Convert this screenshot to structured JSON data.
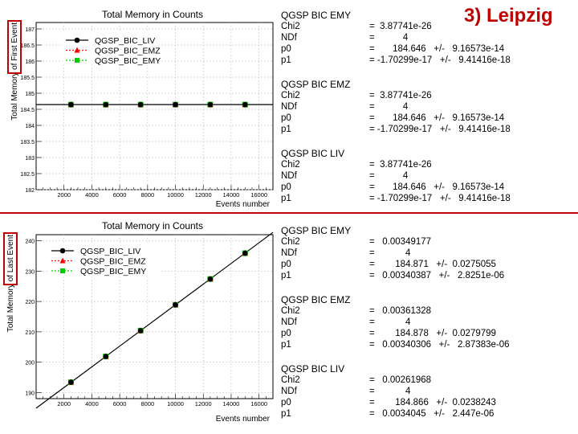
{
  "slide_title": "3) Leipzig",
  "chart_data": [
    {
      "type": "line",
      "title": "Total Memory in Counts",
      "xlabel": "Events number",
      "ylabel": "Total Memory of First Event",
      "xlim": [
        0,
        17000
      ],
      "ylim": [
        182,
        187.2
      ],
      "xticks": [
        2000,
        4000,
        6000,
        8000,
        10000,
        12000,
        14000,
        16000
      ],
      "yticks": [
        182,
        182.5,
        183,
        183.5,
        184,
        184.5,
        185,
        185.5,
        186,
        186.5,
        187
      ],
      "ytick_labels": [
        "182",
        "182.5",
        "183",
        "183.5",
        "184",
        "184.5",
        "185",
        "185.5",
        "186",
        "186.5",
        "187"
      ],
      "fit_line": {
        "slope": 0,
        "intercept": 184.646
      },
      "legend": [
        "QGSP_BIC_LIV",
        "QGSP_BIC_EMZ",
        "QGSP_BIC_EMY"
      ],
      "x": [
        2500,
        5000,
        7500,
        10000,
        12500,
        15000
      ],
      "series": [
        {
          "name": "QGSP_BIC_LIV",
          "color": "#000000",
          "marker": "circle",
          "values": [
            184.646,
            184.646,
            184.646,
            184.646,
            184.646,
            184.646
          ]
        },
        {
          "name": "QGSP_BIC_EMZ",
          "color": "#ff0000",
          "marker": "triangle",
          "values": [
            184.646,
            184.646,
            184.646,
            184.646,
            184.646,
            184.646
          ]
        },
        {
          "name": "QGSP_BIC_EMY",
          "color": "#00cc00",
          "marker": "square",
          "values": [
            184.646,
            184.646,
            184.646,
            184.646,
            184.646,
            184.646
          ]
        }
      ]
    },
    {
      "type": "line",
      "title": "Total Memory in Counts",
      "xlabel": "Events number",
      "ylabel": "Total Memory of Last Event",
      "xlim": [
        0,
        17000
      ],
      "ylim": [
        188,
        242
      ],
      "xticks": [
        2000,
        4000,
        6000,
        8000,
        10000,
        12000,
        14000,
        16000
      ],
      "yticks": [
        190,
        200,
        210,
        220,
        230,
        240
      ],
      "ytick_labels": [
        "190",
        "200",
        "210",
        "220",
        "230",
        "240"
      ],
      "fit_line": {
        "slope": 0.0034045,
        "intercept": 184.866
      },
      "legend": [
        "QGSP_BIC_LIV",
        "QGSP_BIC_EMZ",
        "QGSP_BIC_EMY"
      ],
      "x": [
        2500,
        5000,
        7500,
        10000,
        12500,
        15000
      ],
      "series": [
        {
          "name": "QGSP_BIC_LIV",
          "color": "#000000",
          "marker": "circle",
          "values": [
            193.4,
            201.9,
            210.4,
            218.9,
            227.4,
            235.9
          ]
        },
        {
          "name": "QGSP_BIC_EMZ",
          "color": "#ff0000",
          "marker": "triangle",
          "values": [
            193.4,
            201.9,
            210.4,
            218.9,
            227.4,
            235.9
          ]
        },
        {
          "name": "QGSP_BIC_EMY",
          "color": "#00cc00",
          "marker": "square",
          "values": [
            193.4,
            201.9,
            210.4,
            218.9,
            227.4,
            235.9
          ]
        }
      ]
    }
  ],
  "fits": [
    {
      "name": "QGSP BIC EMY",
      "labels": [
        "Chi2",
        "NDf",
        "p0",
        "p1"
      ],
      "values": [
        "=  3.87741e-26",
        "=           4",
        "=       184.646   +/-   9.16573e-14",
        "= -1.70299e-17   +/-   9.41416e-18"
      ]
    },
    {
      "name": "QGSP BIC EMZ",
      "labels": [
        "Chi2",
        "NDf",
        "p0",
        "p1"
      ],
      "values": [
        "=  3.87741e-26",
        "=           4",
        "=       184.646   +/-   9.16573e-14",
        "= -1.70299e-17   +/-   9.41416e-18"
      ]
    },
    {
      "name": "QGSP BIC LIV",
      "labels": [
        "Chi2",
        "NDf",
        "p0",
        "p1"
      ],
      "values": [
        "=  3.87741e-26",
        "=           4",
        "=       184.646   +/-   9.16573e-14",
        "= -1.70299e-17   +/-   9.41416e-18"
      ]
    },
    {
      "name": "QGSP BIC EMY",
      "labels": [
        "Chi2",
        "NDf",
        "p0",
        "p1"
      ],
      "values": [
        "=   0.00349177",
        "=            4",
        "=        184.871   +/-  0.0275055",
        "=   0.00340387   +/-   2.8251e-06"
      ]
    },
    {
      "name": "QGSP BIC EMZ",
      "labels": [
        "Chi2",
        "NDf",
        "p0",
        "p1"
      ],
      "values": [
        "=   0.00361328",
        "=            4",
        "=        184.878   +/-  0.0279799",
        "=   0.00340306   +/-   2.87383e-06"
      ]
    },
    {
      "name": "QGSP BIC LIV",
      "labels": [
        "Chi2",
        "NDf",
        "p0",
        "p1"
      ],
      "values": [
        "=   0.00261968",
        "=            4",
        "=        184.866   +/-  0.0238243",
        "=   0.0034045   +/-   2.447e-06"
      ]
    }
  ]
}
